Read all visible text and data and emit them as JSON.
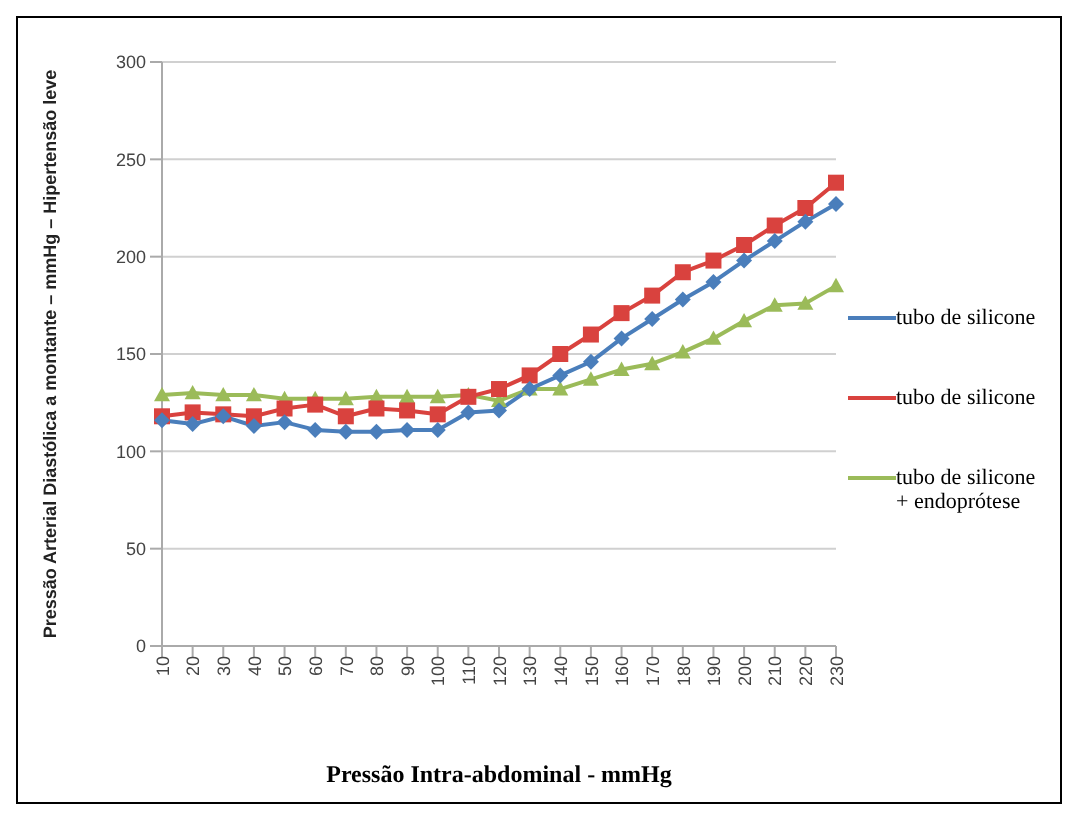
{
  "chart_data": {
    "type": "line",
    "xlabel": "Pressão Intra-abdominal - mmHg",
    "ylabel": "Pressão Arterial Diastólica a montante – mmHg – Hipertensão leve",
    "categories": [
      "10",
      "20",
      "30",
      "40",
      "50",
      "60",
      "70",
      "80",
      "90",
      "100",
      "110",
      "120",
      "130",
      "140",
      "150",
      "160",
      "170",
      "180",
      "190",
      "200",
      "210",
      "220",
      "230"
    ],
    "series": [
      {
        "name": "tubo de silicone",
        "color": "#4a7ebb",
        "marker": "diamond",
        "values": [
          116,
          114,
          118,
          113,
          115,
          111,
          110,
          110,
          111,
          111,
          120,
          121,
          132,
          139,
          146,
          158,
          168,
          178,
          187,
          198,
          208,
          218,
          227
        ]
      },
      {
        "name": "tubo de silicone",
        "color": "#d9423e",
        "marker": "square",
        "values": [
          118,
          120,
          119,
          118,
          122,
          124,
          118,
          122,
          121,
          119,
          128,
          132,
          139,
          150,
          160,
          171,
          180,
          192,
          198,
          206,
          216,
          225,
          238
        ]
      },
      {
        "name": "tubo de silicone + endoprótese",
        "color": "#9bbb59",
        "marker": "triangle",
        "values": [
          129,
          130,
          129,
          129,
          127,
          127,
          127,
          128,
          128,
          128,
          129,
          126,
          132,
          132,
          137,
          142,
          145,
          151,
          158,
          167,
          175,
          176,
          185
        ]
      }
    ],
    "ylim": [
      0,
      300
    ],
    "yticks": [
      0,
      50,
      100,
      150,
      200,
      250,
      300
    ],
    "grid": "y",
    "legend": "right"
  }
}
